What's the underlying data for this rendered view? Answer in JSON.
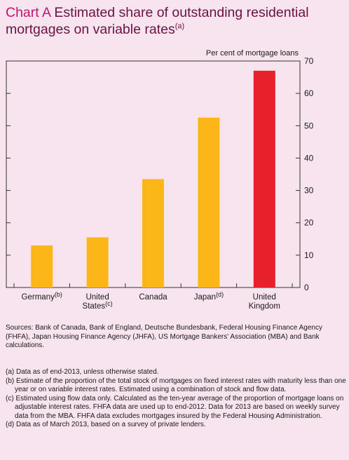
{
  "title": {
    "tag": "Chart A",
    "text": "Estimated share of outstanding residential mortgages on variable rates",
    "note_mark": "(a)"
  },
  "chart_data": {
    "type": "bar",
    "categories": [
      "Germany",
      "United States",
      "Canada",
      "Japan",
      "United Kingdom"
    ],
    "category_labels": [
      {
        "lines": [
          "Germany"
        ],
        "sup": "(b)"
      },
      {
        "lines": [
          "United",
          "States"
        ],
        "sup": "(c)"
      },
      {
        "lines": [
          "Canada"
        ],
        "sup": ""
      },
      {
        "lines": [
          "Japan"
        ],
        "sup": "(d)"
      },
      {
        "lines": [
          "United",
          "Kingdom"
        ],
        "sup": ""
      }
    ],
    "values": [
      13,
      15.5,
      33.5,
      52.5,
      67
    ],
    "colors": [
      "#fcb617",
      "#fcb617",
      "#fcb617",
      "#fcb617",
      "#e8202b"
    ],
    "ylabel": "Per cent of mortgage loans",
    "ylim": [
      0,
      70
    ],
    "yticks": [
      0,
      10,
      20,
      30,
      40,
      50,
      60,
      70
    ],
    "grid": false
  },
  "sources": "Sources: Bank of Canada, Bank of England, Deutsche Bundesbank, Federal Housing Finance Agency (FHFA), Japan Housing Finance Agency (JHFA), US Mortgage Bankers' Association (MBA) and Bank calculations.",
  "footnotes": [
    "(a) Data as of end-2013, unless otherwise stated.",
    "(b) Estimate of the proportion of the total stock of mortgages on fixed interest rates with maturity less than one year or on variable interest rates. Estimated using a combination of stock and flow data.",
    "(c) Estimated using flow data only. Calculated as the ten-year average of the proportion of mortgage loans on adjustable interest rates. FHFA data are used up to end-2012. Data for 2013 are based on weekly survey data from the MBA. FHFA data excludes mortgages insured by the Federal Housing Administration.",
    "(d) Data as of March 2013, based on a survey of private lenders."
  ]
}
